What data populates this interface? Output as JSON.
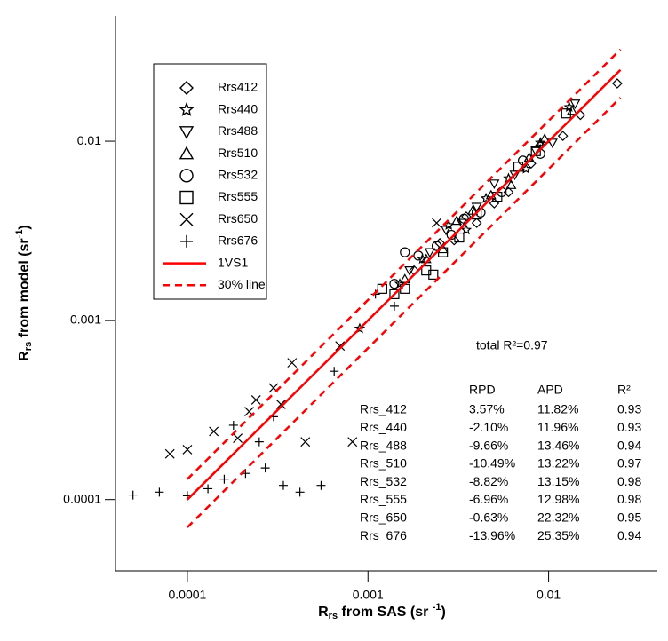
{
  "chart_data": {
    "type": "scatter",
    "log_x": true,
    "log_y": true,
    "xlim": [
      4e-05,
      0.04
    ],
    "ylim": [
      4e-05,
      0.05
    ],
    "xticks": [
      0.0001,
      0.001,
      0.01
    ],
    "yticks": [
      0.0001,
      0.001,
      0.01
    ],
    "x_label": [
      "R",
      "rs",
      " from SAS (sr ",
      "-1",
      ")"
    ],
    "y_label": [
      "R",
      "rs",
      " from model (sr",
      "-1",
      ")"
    ],
    "annotation": "total R²=0.97",
    "series": [
      {
        "name": "Rrs412",
        "marker": "diamond",
        "color": "#000000",
        "x": [
          0.0025,
          0.003,
          0.004,
          0.005,
          0.006,
          0.008,
          0.009,
          0.012,
          0.015,
          0.024,
          0.0018,
          0.0035
        ],
        "y": [
          0.0027,
          0.0028,
          0.0035,
          0.0045,
          0.0052,
          0.0075,
          0.0095,
          0.0107,
          0.014,
          0.021,
          0.0019,
          0.0038
        ]
      },
      {
        "name": "Rrs440",
        "marker": "star",
        "color": "#000000",
        "x": [
          0.0015,
          0.002,
          0.0028,
          0.0035,
          0.0045,
          0.006,
          0.0075,
          0.009,
          0.013,
          0.0009
        ],
        "y": [
          0.0016,
          0.0022,
          0.0034,
          0.0032,
          0.0048,
          0.0062,
          0.007,
          0.0098,
          0.0155,
          0.0009
        ]
      },
      {
        "name": "Rrs488",
        "marker": "triangle-down",
        "color": "#000000",
        "x": [
          0.0017,
          0.0022,
          0.0027,
          0.0033,
          0.004,
          0.005,
          0.0065,
          0.0085,
          0.0105,
          0.014
        ],
        "y": [
          0.0019,
          0.0024,
          0.0032,
          0.0035,
          0.0043,
          0.0058,
          0.0065,
          0.0088,
          0.0098,
          0.0162
        ]
      },
      {
        "name": "Rrs510",
        "marker": "triangle-up",
        "color": "#000000",
        "x": [
          0.0016,
          0.0021,
          0.0026,
          0.0031,
          0.0038,
          0.0048,
          0.0062,
          0.0078,
          0.0095,
          0.0135
        ],
        "y": [
          0.0017,
          0.0022,
          0.0025,
          0.0036,
          0.0041,
          0.005,
          0.0057,
          0.0081,
          0.0103,
          0.0148
        ]
      },
      {
        "name": "Rrs532",
        "marker": "circle",
        "color": "#000000",
        "x": [
          0.0014,
          0.0019,
          0.0024,
          0.0029,
          0.0034,
          0.0042,
          0.0055,
          0.0072,
          0.009,
          0.0016
        ],
        "y": [
          0.0016,
          0.0023,
          0.0026,
          0.003,
          0.0037,
          0.004,
          0.0052,
          0.0078,
          0.0085,
          0.0024
        ]
      },
      {
        "name": "Rrs555",
        "marker": "square",
        "color": "#000000",
        "x": [
          0.0012,
          0.0016,
          0.0021,
          0.0026,
          0.0032,
          0.004,
          0.0052,
          0.0068,
          0.0085,
          0.0125,
          0.0014,
          0.0023
        ],
        "y": [
          0.0015,
          0.0015,
          0.0019,
          0.0024,
          0.0029,
          0.0039,
          0.0049,
          0.0072,
          0.0088,
          0.0143,
          0.0014,
          0.0018
        ]
      },
      {
        "name": "Rrs650",
        "marker": "x",
        "color": "#000000",
        "x": [
          8e-05,
          0.0001,
          0.00014,
          0.00019,
          0.00024,
          0.00033,
          0.00045,
          0.00082,
          0.0024,
          0.0003,
          0.00022,
          0.00038,
          0.0007
        ],
        "y": [
          0.00018,
          0.00019,
          0.00024,
          0.00022,
          0.00036,
          0.00034,
          0.00021,
          0.00021,
          0.0035,
          0.00042,
          0.00031,
          0.00058,
          0.00072
        ]
      },
      {
        "name": "Rrs676",
        "marker": "plus",
        "color": "#000000",
        "x": [
          5e-05,
          7e-05,
          0.0001,
          0.00013,
          0.00016,
          0.00021,
          0.00027,
          0.00034,
          0.00042,
          0.00055,
          0.00018,
          0.00025,
          0.0003,
          0.00065,
          0.0011,
          0.0014
        ],
        "y": [
          0.000106,
          0.00011,
          0.000105,
          0.000115,
          0.00013,
          0.00014,
          0.00015,
          0.00012,
          0.00011,
          0.00012,
          0.00026,
          0.00021,
          0.00029,
          0.00052,
          0.0014,
          0.0012
        ]
      }
    ],
    "lines": [
      {
        "name": "1VS1",
        "color": "#ff0000",
        "dashed": false,
        "x": [
          0.0001,
          0.025
        ],
        "y": [
          0.0001,
          0.025
        ]
      },
      {
        "name": "30% line",
        "color": "#ff0000",
        "dashed": true,
        "x": [
          0.0001,
          0.025
        ],
        "y": [
          0.00013,
          0.0325
        ]
      },
      {
        "color": "#ff0000",
        "dashed": true,
        "x": [
          0.0001,
          0.025
        ],
        "y": [
          7e-05,
          0.0175
        ]
      }
    ],
    "stats_table": {
      "header": [
        "RPD",
        "APD",
        "R²"
      ],
      "rows": [
        [
          "Rrs_412",
          "3.57%",
          "11.82%",
          "0.93"
        ],
        [
          "Rrs_440",
          "-2.10%",
          "11.96%",
          "0.93"
        ],
        [
          "Rrs_488",
          "-9.66%",
          "13.46%",
          "0.94"
        ],
        [
          "Rrs_510",
          "-10.49%",
          "13.22%",
          "0.97"
        ],
        [
          "Rrs_532",
          "-8.82%",
          "13.15%",
          "0.98"
        ],
        [
          "Rrs_555",
          "-6.96%",
          "12.98%",
          "0.98"
        ],
        [
          "Rrs_650",
          "-0.63%",
          "22.32%",
          "0.95"
        ],
        [
          "Rrs_676",
          "-13.96%",
          "25.35%",
          "0.94"
        ]
      ]
    }
  }
}
